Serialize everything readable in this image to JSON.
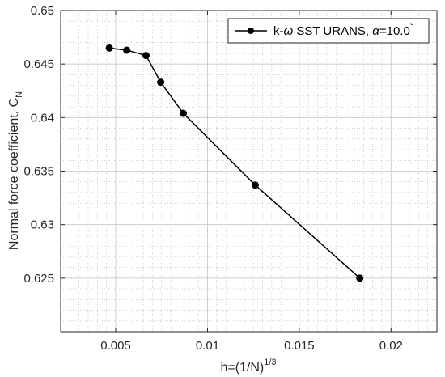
{
  "chart_data": {
    "type": "line",
    "title": "",
    "xlabel": "h=(1/N)",
    "xlabel_sup": "1/3",
    "ylabel": "Normal force coefficient, C",
    "ylabel_sub": "N",
    "xlim": [
      0.002,
      0.0225
    ],
    "ylim": [
      0.62,
      0.65
    ],
    "xticks": [
      0.005,
      0.01,
      0.015,
      0.02
    ],
    "xtick_labels": [
      "0.005",
      "0.01",
      "0.015",
      "0.02"
    ],
    "yticks": [
      0.625,
      0.63,
      0.635,
      0.64,
      0.645,
      0.65
    ],
    "ytick_labels": [
      "0.625",
      "0.63",
      "0.635",
      "0.64",
      "0.645",
      "0.65"
    ],
    "grid": true,
    "minor_grid": true,
    "legend_position": "top-right",
    "series": [
      {
        "name": "k-ω SST URANS, α=10.0°",
        "color": "#000000",
        "marker": "circle",
        "x": [
          0.00465,
          0.0056,
          0.00665,
          0.00745,
          0.00868,
          0.0126,
          0.0183
        ],
        "y": [
          0.6465,
          0.6463,
          0.6458,
          0.6433,
          0.6404,
          0.6337,
          0.625
        ]
      }
    ]
  },
  "legend": {
    "prefix": "k-",
    "omega": "ω",
    "middle": " SST URANS, ",
    "alpha": "α",
    "suffix": "=10.0",
    "degree": "°"
  }
}
